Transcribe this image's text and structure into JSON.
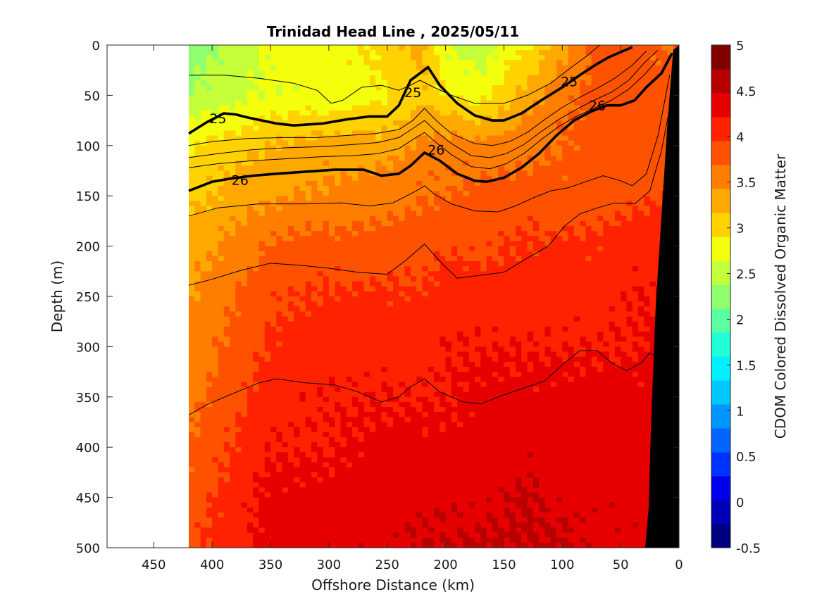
{
  "chart_data": {
    "type": "heatmap",
    "title": "Trinidad Head Line , 2025/05/11",
    "xlabel": "Offshore Distance (km)",
    "ylabel": "Depth (m)",
    "colorbar_label": "CDOM Colored Dissolved Organic Matter",
    "xlim": [
      490,
      0
    ],
    "ylim": [
      500,
      0
    ],
    "x_reversed": true,
    "y_reversed": true,
    "x_ticks": [
      "450",
      "400",
      "350",
      "300",
      "250",
      "200",
      "150",
      "100",
      "50",
      "0"
    ],
    "x_tick_values": [
      450,
      400,
      350,
      300,
      250,
      200,
      150,
      100,
      50,
      0
    ],
    "y_ticks": [
      "0",
      "50",
      "100",
      "150",
      "200",
      "250",
      "300",
      "350",
      "400",
      "450",
      "500"
    ],
    "y_tick_values": [
      0,
      50,
      100,
      150,
      200,
      250,
      300,
      350,
      400,
      450,
      500
    ],
    "colorbar_ticks": [
      "5",
      "4.5",
      "4",
      "3.5",
      "3",
      "2.5",
      "2",
      "1.5",
      "1",
      "0.5",
      "0",
      "-0.5"
    ],
    "colorbar_tick_values": [
      5,
      4.5,
      4,
      3.5,
      3,
      2.5,
      2,
      1.5,
      1,
      0.5,
      0,
      -0.5
    ],
    "clim": [
      -0.5,
      5
    ],
    "data_extent_offshore_km": 420,
    "colormap": [
      "#000080",
      "#0000b8",
      "#0000ec",
      "#0032ff",
      "#0064ff",
      "#0096ff",
      "#00c8ff",
      "#00f0ff",
      "#20ffd8",
      "#5affa0",
      "#90ff6e",
      "#c4ff3a",
      "#f4ff0c",
      "#ffd200",
      "#ffa800",
      "#ff7e00",
      "#ff5200",
      "#ff2200",
      "#e60000",
      "#b80000",
      "#800000"
    ],
    "field_profile": {
      "depths": [
        0,
        50,
        100,
        150,
        200,
        250,
        300,
        350,
        400,
        450,
        500
      ],
      "x_stations": [
        420,
        350,
        300,
        250,
        220,
        200,
        170,
        130,
        100,
        70,
        40,
        15
      ],
      "note": "values are CDOM at grid nodes (rows = depths, cols = x_stations)",
      "values": [
        [
          2.2,
          2.7,
          2.8,
          3.0,
          3.3,
          2.6,
          2.5,
          2.9,
          3.3,
          3.8,
          3.8,
          3.7
        ],
        [
          2.4,
          2.7,
          2.7,
          2.9,
          3.1,
          2.9,
          2.8,
          3.3,
          3.6,
          3.8,
          3.8,
          3.8
        ],
        [
          2.9,
          3.2,
          3.3,
          3.3,
          3.5,
          3.6,
          3.5,
          3.6,
          3.7,
          3.8,
          3.8,
          3.8
        ],
        [
          3.1,
          3.4,
          3.5,
          3.6,
          3.7,
          3.7,
          3.8,
          3.8,
          3.8,
          3.8,
          3.9,
          3.9
        ],
        [
          3.3,
          3.7,
          3.8,
          3.8,
          3.8,
          3.9,
          3.9,
          4.0,
          4.0,
          4.0,
          4.1,
          4.1
        ],
        [
          3.4,
          3.9,
          4.0,
          4.0,
          4.0,
          4.1,
          4.1,
          4.1,
          4.1,
          4.1,
          4.2,
          4.2
        ],
        [
          3.5,
          4.0,
          4.1,
          4.1,
          4.1,
          4.2,
          4.2,
          4.2,
          4.2,
          4.2,
          4.2,
          4.3
        ],
        [
          3.6,
          4.1,
          4.2,
          4.2,
          4.2,
          4.2,
          4.3,
          4.3,
          4.3,
          4.3,
          4.3,
          4.3
        ],
        [
          3.7,
          4.2,
          4.2,
          4.3,
          4.3,
          4.3,
          4.3,
          4.4,
          4.3,
          4.4,
          4.3,
          4.4
        ],
        [
          3.8,
          4.3,
          4.3,
          4.4,
          4.4,
          4.4,
          4.4,
          4.5,
          4.4,
          4.4,
          4.4,
          4.4
        ],
        [
          3.9,
          4.3,
          4.4,
          4.4,
          4.5,
          4.5,
          4.5,
          4.5,
          4.5,
          4.4,
          4.4,
          4.4
        ]
      ]
    },
    "density_contours": [
      {
        "level": "25",
        "labeled": true,
        "bold": true,
        "points": [
          [
            420,
            88
          ],
          [
            405,
            77
          ],
          [
            390,
            68
          ],
          [
            380,
            69
          ],
          [
            370,
            72
          ],
          [
            345,
            78
          ],
          [
            330,
            80
          ],
          [
            305,
            78
          ],
          [
            285,
            74
          ],
          [
            265,
            71
          ],
          [
            250,
            71
          ],
          [
            240,
            60
          ],
          [
            230,
            35
          ],
          [
            215,
            22
          ],
          [
            205,
            40
          ],
          [
            190,
            58
          ],
          [
            175,
            70
          ],
          [
            160,
            75
          ],
          [
            150,
            75
          ],
          [
            135,
            68
          ],
          [
            118,
            55
          ],
          [
            100,
            42
          ],
          [
            85,
            30
          ],
          [
            72,
            20
          ],
          [
            60,
            12
          ],
          [
            40,
            2
          ]
        ]
      },
      {
        "level": "26",
        "labeled": true,
        "bold": true,
        "points": [
          [
            420,
            145
          ],
          [
            400,
            136
          ],
          [
            385,
            133
          ],
          [
            365,
            130
          ],
          [
            345,
            128
          ],
          [
            320,
            126
          ],
          [
            295,
            124
          ],
          [
            270,
            124
          ],
          [
            255,
            130
          ],
          [
            240,
            128
          ],
          [
            230,
            120
          ],
          [
            218,
            107
          ],
          [
            205,
            115
          ],
          [
            190,
            128
          ],
          [
            175,
            135
          ],
          [
            165,
            136
          ],
          [
            150,
            132
          ],
          [
            135,
            122
          ],
          [
            120,
            108
          ],
          [
            105,
            90
          ],
          [
            90,
            75
          ],
          [
            75,
            66
          ],
          [
            62,
            60
          ],
          [
            50,
            60
          ],
          [
            38,
            55
          ],
          [
            28,
            42
          ],
          [
            15,
            28
          ],
          [
            6,
            8
          ]
        ]
      },
      {
        "level": "",
        "labeled": false,
        "bold": false,
        "points": [
          [
            420,
            30
          ],
          [
            390,
            30
          ],
          [
            360,
            33
          ],
          [
            330,
            38
          ],
          [
            310,
            45
          ],
          [
            298,
            58
          ],
          [
            288,
            55
          ],
          [
            272,
            42
          ],
          [
            255,
            40
          ],
          [
            240,
            45
          ],
          [
            230,
            40
          ],
          [
            222,
            35
          ],
          [
            210,
            42
          ],
          [
            195,
            50
          ],
          [
            175,
            58
          ],
          [
            150,
            58
          ],
          [
            130,
            50
          ],
          [
            110,
            38
          ],
          [
            92,
            22
          ],
          [
            78,
            10
          ],
          [
            68,
            0
          ]
        ]
      },
      {
        "level": "",
        "labeled": false,
        "bold": false,
        "points": [
          [
            420,
            100
          ],
          [
            400,
            96
          ],
          [
            370,
            93
          ],
          [
            340,
            92
          ],
          [
            310,
            92
          ],
          [
            285,
            90
          ],
          [
            260,
            88
          ],
          [
            240,
            84
          ],
          [
            228,
            75
          ],
          [
            218,
            63
          ],
          [
            208,
            75
          ],
          [
            195,
            88
          ],
          [
            175,
            98
          ],
          [
            160,
            100
          ],
          [
            145,
            96
          ],
          [
            130,
            87
          ],
          [
            115,
            74
          ],
          [
            100,
            62
          ],
          [
            85,
            52
          ],
          [
            70,
            43
          ],
          [
            55,
            33
          ],
          [
            40,
            20
          ],
          [
            28,
            6
          ]
        ]
      },
      {
        "level": "",
        "labeled": false,
        "bold": false,
        "points": [
          [
            420,
            112
          ],
          [
            395,
            108
          ],
          [
            365,
            104
          ],
          [
            335,
            102
          ],
          [
            305,
            101
          ],
          [
            280,
            99
          ],
          [
            258,
            97
          ],
          [
            240,
            92
          ],
          [
            228,
            83
          ],
          [
            218,
            75
          ],
          [
            208,
            86
          ],
          [
            195,
            98
          ],
          [
            178,
            110
          ],
          [
            162,
            112
          ],
          [
            148,
            108
          ],
          [
            133,
            99
          ],
          [
            118,
            86
          ],
          [
            103,
            74
          ],
          [
            88,
            64
          ],
          [
            73,
            55
          ],
          [
            58,
            47
          ],
          [
            43,
            35
          ],
          [
            30,
            18
          ],
          [
            18,
            5
          ]
        ]
      },
      {
        "level": "",
        "labeled": false,
        "bold": false,
        "points": [
          [
            420,
            122
          ],
          [
            395,
            118
          ],
          [
            365,
            115
          ],
          [
            335,
            113
          ],
          [
            305,
            111
          ],
          [
            280,
            110
          ],
          [
            258,
            108
          ],
          [
            240,
            103
          ],
          [
            228,
            94
          ],
          [
            218,
            87
          ],
          [
            208,
            97
          ],
          [
            195,
            109
          ],
          [
            178,
            121
          ],
          [
            162,
            123
          ],
          [
            148,
            118
          ],
          [
            133,
            108
          ],
          [
            118,
            94
          ],
          [
            103,
            81
          ],
          [
            88,
            71
          ],
          [
            73,
            63
          ],
          [
            58,
            55
          ],
          [
            43,
            44
          ],
          [
            30,
            30
          ],
          [
            18,
            14
          ]
        ]
      },
      {
        "level": "",
        "labeled": false,
        "bold": false,
        "points": [
          [
            420,
            170
          ],
          [
            395,
            162
          ],
          [
            360,
            158
          ],
          [
            320,
            158
          ],
          [
            290,
            157
          ],
          [
            265,
            160
          ],
          [
            245,
            157
          ],
          [
            225,
            145
          ],
          [
            218,
            140
          ],
          [
            210,
            148
          ],
          [
            195,
            158
          ],
          [
            175,
            165
          ],
          [
            155,
            166
          ],
          [
            140,
            160
          ],
          [
            125,
            152
          ],
          [
            110,
            145
          ],
          [
            95,
            142
          ],
          [
            80,
            136
          ],
          [
            65,
            130
          ],
          [
            50,
            135
          ],
          [
            40,
            140
          ],
          [
            28,
            128
          ],
          [
            18,
            90
          ],
          [
            8,
            30
          ]
        ]
      },
      {
        "level": "",
        "labeled": false,
        "bold": false,
        "points": [
          [
            420,
            239
          ],
          [
            400,
            233
          ],
          [
            375,
            224
          ],
          [
            350,
            217
          ],
          [
            325,
            219
          ],
          [
            300,
            222
          ],
          [
            275,
            226
          ],
          [
            250,
            228
          ],
          [
            235,
            215
          ],
          [
            218,
            198
          ],
          [
            205,
            215
          ],
          [
            190,
            232
          ],
          [
            170,
            229
          ],
          [
            150,
            226
          ],
          [
            130,
            212
          ],
          [
            112,
            200
          ],
          [
            98,
            180
          ],
          [
            85,
            168
          ],
          [
            70,
            162
          ],
          [
            55,
            157
          ],
          [
            38,
            158
          ],
          [
            25,
            145
          ],
          [
            15,
            105
          ],
          [
            5,
            45
          ]
        ]
      },
      {
        "level": "",
        "labeled": false,
        "bold": false,
        "points": [
          [
            420,
            368
          ],
          [
            405,
            358
          ],
          [
            385,
            348
          ],
          [
            360,
            336
          ],
          [
            345,
            332
          ],
          [
            320,
            336
          ],
          [
            295,
            338
          ],
          [
            275,
            345
          ],
          [
            255,
            355
          ],
          [
            240,
            350
          ],
          [
            230,
            340
          ],
          [
            218,
            332
          ],
          [
            205,
            345
          ],
          [
            185,
            355
          ],
          [
            170,
            357
          ],
          [
            150,
            348
          ],
          [
            130,
            340
          ],
          [
            115,
            334
          ],
          [
            100,
            318
          ],
          [
            85,
            304
          ],
          [
            70,
            304
          ],
          [
            58,
            316
          ],
          [
            45,
            324
          ],
          [
            32,
            316
          ],
          [
            25,
            306
          ],
          [
            12,
            315
          ]
        ]
      }
    ],
    "contour_labels": [
      {
        "text": "25",
        "x": 395,
        "y": 73
      },
      {
        "text": "25",
        "x": 228,
        "y": 47
      },
      {
        "text": "25",
        "x": 94,
        "y": 36
      },
      {
        "text": "26",
        "x": 376,
        "y": 134
      },
      {
        "text": "26",
        "x": 208,
        "y": 104
      },
      {
        "text": "26",
        "x": 70,
        "y": 60
      }
    ],
    "bathymetry_polygon": [
      [
        0,
        0
      ],
      [
        5,
        5
      ],
      [
        10,
        80
      ],
      [
        15,
        170
      ],
      [
        20,
        260
      ],
      [
        24,
        380
      ],
      [
        26,
        460
      ],
      [
        29,
        500
      ],
      [
        0,
        500
      ]
    ]
  }
}
